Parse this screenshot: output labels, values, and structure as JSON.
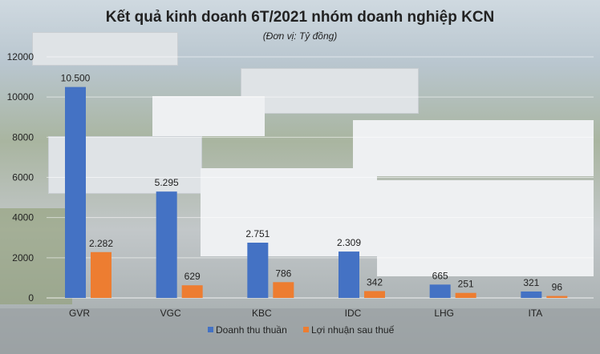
{
  "chart_data": {
    "type": "bar",
    "title": "Kết quả kinh doanh 6T/2021 nhóm doanh nghiệp KCN",
    "subtitle": "(Đơn vị: Tỷ đồng)",
    "categories": [
      "GVR",
      "VGC",
      "KBC",
      "IDC",
      "LHG",
      "ITA"
    ],
    "series": [
      {
        "name": "Doanh thu thuần",
        "color": "#4472c4",
        "values": [
          10500,
          5295,
          2751,
          2309,
          665,
          321
        ],
        "labels": [
          "10.500",
          "5.295",
          "2.751",
          "2.309",
          "665",
          "321"
        ]
      },
      {
        "name": "Lợi nhuận sau thuế",
        "color": "#ed7d31",
        "values": [
          2282,
          629,
          786,
          342,
          251,
          96
        ],
        "labels": [
          "2.282",
          "629",
          "786",
          "342",
          "251",
          "96"
        ]
      }
    ],
    "ylim": [
      0,
      12000
    ],
    "yticks": [
      0,
      2000,
      4000,
      6000,
      8000,
      10000,
      12000
    ],
    "ytick_labels": [
      "0",
      "2000",
      "4000",
      "6000",
      "8000",
      "10000",
      "12000"
    ],
    "grid": true,
    "legend": "bottom"
  }
}
